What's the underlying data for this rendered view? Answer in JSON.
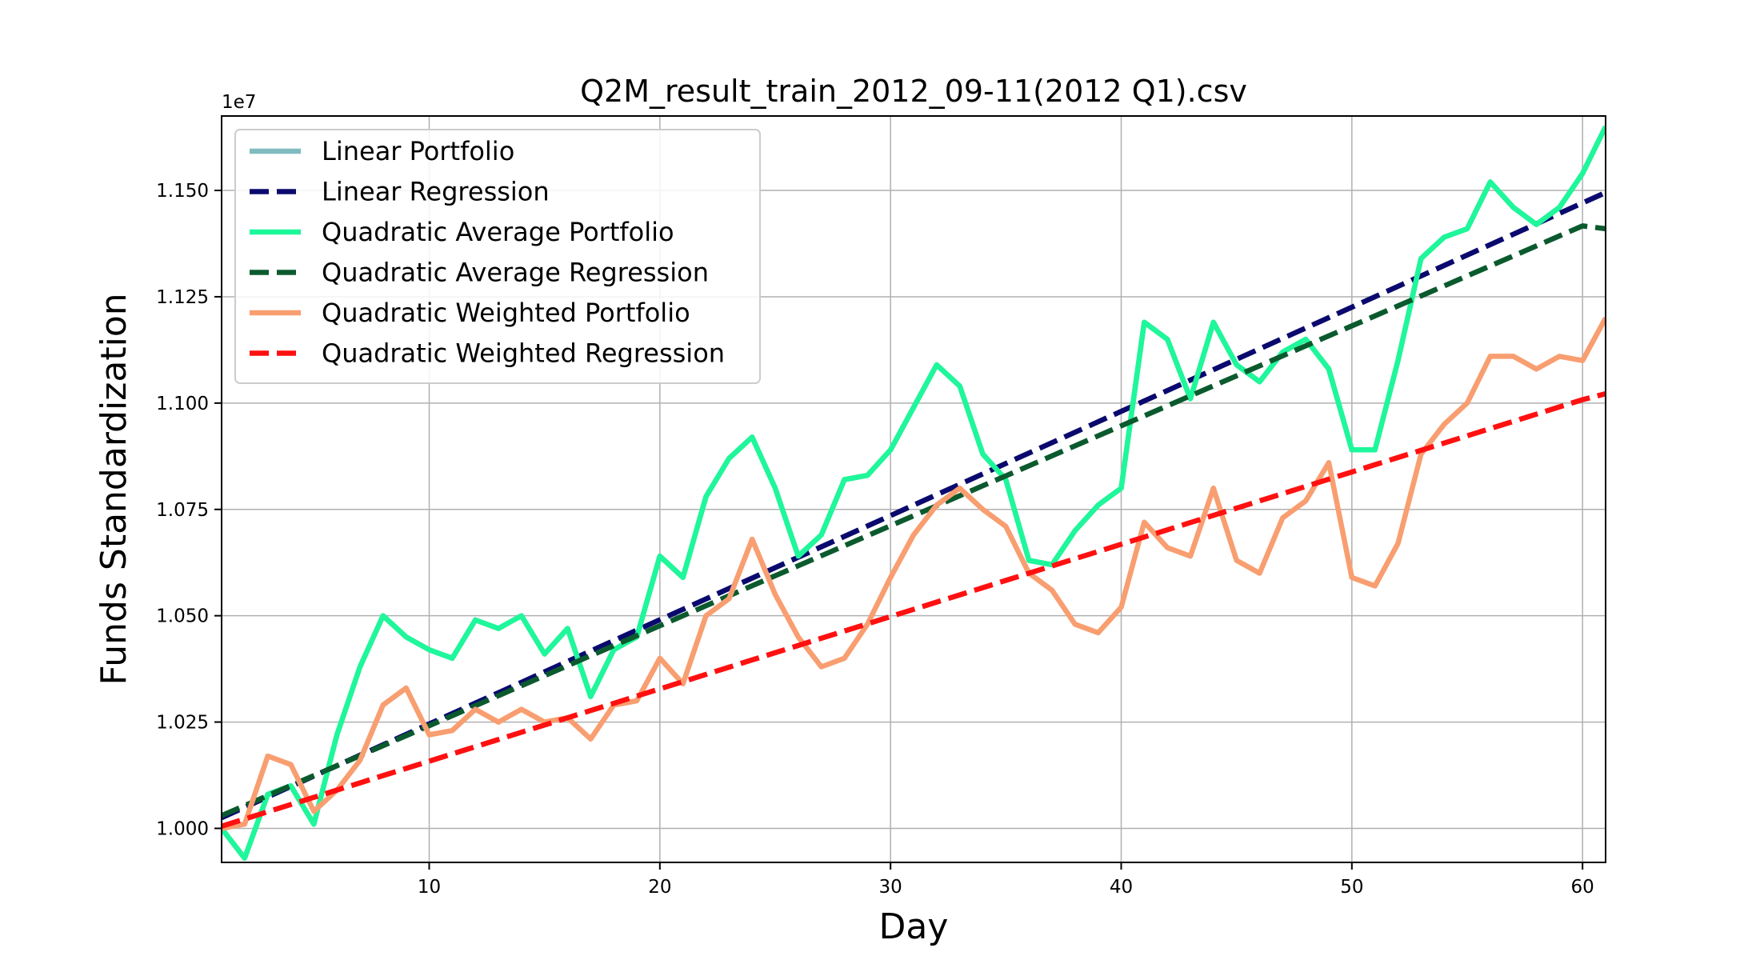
{
  "chart_data": {
    "type": "line",
    "title": "Q2M_result_train_2012_09-11(2012 Q1).csv",
    "xlabel": "Day",
    "ylabel": "Funds Standardization",
    "y_offset_label": "1e7",
    "xlim": [
      1,
      61
    ],
    "ylim": [
      0.992,
      1.1675
    ],
    "x_ticks": [
      10,
      20,
      30,
      40,
      50,
      60
    ],
    "x_tick_labels": [
      "10",
      "20",
      "30",
      "40",
      "50",
      "60"
    ],
    "y_ticks": [
      1.0,
      1.025,
      1.05,
      1.075,
      1.1,
      1.125,
      1.15
    ],
    "y_tick_labels": [
      "1.000",
      "1.025",
      "1.050",
      "1.075",
      "1.100",
      "1.125",
      "1.150"
    ],
    "grid": true,
    "legend_position": "top-left",
    "x": [
      1,
      2,
      3,
      4,
      5,
      6,
      7,
      8,
      9,
      10,
      11,
      12,
      13,
      14,
      15,
      16,
      17,
      18,
      19,
      20,
      21,
      22,
      23,
      24,
      25,
      26,
      27,
      28,
      29,
      30,
      31,
      32,
      33,
      34,
      35,
      36,
      37,
      38,
      39,
      40,
      41,
      42,
      43,
      44,
      45,
      46,
      47,
      48,
      49,
      50,
      51,
      52,
      53,
      54,
      55,
      56,
      57,
      58,
      59,
      60,
      61
    ],
    "series": [
      {
        "name": "Linear Portfolio",
        "color": "#7fbcc0",
        "style": "solid",
        "values": [
          1.0,
          0.993,
          1.008,
          1.01,
          1.001,
          1.022,
          1.038,
          1.05,
          1.045,
          1.042,
          1.04,
          1.049,
          1.047,
          1.05,
          1.041,
          1.047,
          1.031,
          1.042,
          1.045,
          1.064,
          1.059,
          1.078,
          1.087,
          1.092,
          1.08,
          1.064,
          1.069,
          1.082,
          1.083,
          1.089,
          1.099,
          1.109,
          1.104,
          1.088,
          1.082,
          1.063,
          1.062,
          1.07,
          1.076,
          1.08,
          1.119,
          1.115,
          1.101,
          1.119,
          1.109,
          1.105,
          1.112,
          1.115,
          1.108,
          1.089,
          1.089,
          1.11,
          1.134,
          1.139,
          1.141,
          1.152,
          1.146,
          1.142,
          1.146,
          1.154,
          1.165
        ]
      },
      {
        "name": "Linear Regression",
        "color": "#0a0a6e",
        "style": "dashed",
        "values": [
          1.0025,
          1.00495,
          1.0074,
          1.00985,
          1.0123,
          1.01475,
          1.0172,
          1.01965,
          1.0221,
          1.02455,
          1.027,
          1.02945,
          1.0319,
          1.03435,
          1.0368,
          1.03925,
          1.0417,
          1.04415,
          1.0466,
          1.04905,
          1.0515,
          1.05395,
          1.0564,
          1.05885,
          1.0613,
          1.06375,
          1.0662,
          1.06865,
          1.0711,
          1.07355,
          1.076,
          1.07845,
          1.0809,
          1.08335,
          1.0858,
          1.08825,
          1.0907,
          1.09315,
          1.0956,
          1.09805,
          1.1005,
          1.10295,
          1.1054,
          1.10785,
          1.1103,
          1.11275,
          1.1152,
          1.11765,
          1.1201,
          1.12255,
          1.125,
          1.12745,
          1.1299,
          1.13235,
          1.1348,
          1.13725,
          1.1397,
          1.14215,
          1.1446,
          1.14705,
          1.1495
        ]
      },
      {
        "name": "Quadratic Average Portfolio",
        "color": "#1ef79a",
        "style": "solid",
        "values": [
          1.0,
          0.993,
          1.008,
          1.01,
          1.001,
          1.022,
          1.038,
          1.05,
          1.045,
          1.042,
          1.04,
          1.049,
          1.047,
          1.05,
          1.041,
          1.047,
          1.031,
          1.042,
          1.045,
          1.064,
          1.059,
          1.078,
          1.087,
          1.092,
          1.08,
          1.064,
          1.069,
          1.082,
          1.083,
          1.089,
          1.099,
          1.109,
          1.104,
          1.088,
          1.082,
          1.063,
          1.062,
          1.07,
          1.076,
          1.08,
          1.119,
          1.115,
          1.101,
          1.119,
          1.109,
          1.105,
          1.112,
          1.115,
          1.108,
          1.089,
          1.089,
          1.11,
          1.134,
          1.139,
          1.141,
          1.152,
          1.146,
          1.142,
          1.146,
          1.154,
          1.165
        ]
      },
      {
        "name": "Quadratic Average Regression",
        "color": "#0b5a2e",
        "style": "dashed",
        "values": [
          1.003,
          1.00535,
          1.0077,
          1.01005,
          1.0124,
          1.01475,
          1.0171,
          1.01945,
          1.0218,
          1.02415,
          1.0265,
          1.02885,
          1.0312,
          1.03355,
          1.0359,
          1.03825,
          1.0406,
          1.04295,
          1.0453,
          1.04765,
          1.05,
          1.05235,
          1.0547,
          1.05705,
          1.0594,
          1.06175,
          1.0641,
          1.06645,
          1.0688,
          1.07115,
          1.0735,
          1.07585,
          1.0782,
          1.08055,
          1.0829,
          1.08525,
          1.0876,
          1.08995,
          1.0923,
          1.09465,
          1.097,
          1.09935,
          1.1017,
          1.10405,
          1.1064,
          1.10875,
          1.1111,
          1.11345,
          1.1158,
          1.11815,
          1.1205,
          1.12285,
          1.1252,
          1.12755,
          1.1299,
          1.13225,
          1.1346,
          1.13695,
          1.1393,
          1.14165,
          1.141
        ]
      },
      {
        "name": "Quadratic Weighted Portfolio",
        "color": "#f89e70",
        "style": "solid",
        "values": [
          1.0,
          1.001,
          1.017,
          1.015,
          1.004,
          1.009,
          1.016,
          1.029,
          1.033,
          1.022,
          1.023,
          1.028,
          1.025,
          1.028,
          1.025,
          1.026,
          1.021,
          1.029,
          1.03,
          1.04,
          1.034,
          1.05,
          1.054,
          1.068,
          1.055,
          1.045,
          1.038,
          1.04,
          1.048,
          1.059,
          1.069,
          1.076,
          1.08,
          1.075,
          1.071,
          1.06,
          1.056,
          1.048,
          1.046,
          1.052,
          1.072,
          1.066,
          1.064,
          1.08,
          1.063,
          1.06,
          1.073,
          1.077,
          1.086,
          1.059,
          1.057,
          1.067,
          1.088,
          1.095,
          1.1,
          1.111,
          1.111,
          1.108,
          1.111,
          1.11,
          1.12
        ]
      },
      {
        "name": "Quadratic Weighted Regression",
        "color": "#ff1010",
        "style": "dashed",
        "values": [
          1.0005,
          1.0022,
          1.0039,
          1.0056,
          1.0073,
          1.009,
          1.0107,
          1.0124,
          1.0141,
          1.0158,
          1.0175,
          1.0192,
          1.0209,
          1.0226,
          1.0243,
          1.026,
          1.0277,
          1.0294,
          1.0311,
          1.0328,
          1.0345,
          1.0362,
          1.0379,
          1.0396,
          1.0413,
          1.043,
          1.0447,
          1.0464,
          1.0481,
          1.0498,
          1.0515,
          1.0532,
          1.0549,
          1.0566,
          1.0583,
          1.06,
          1.0617,
          1.0634,
          1.0651,
          1.0668,
          1.0685,
          1.0702,
          1.0719,
          1.0736,
          1.0753,
          1.077,
          1.0787,
          1.0804,
          1.0821,
          1.0838,
          1.0855,
          1.0872,
          1.0889,
          1.0906,
          1.0923,
          1.094,
          1.0957,
          1.0974,
          1.0991,
          1.1008,
          1.1022
        ]
      }
    ]
  }
}
